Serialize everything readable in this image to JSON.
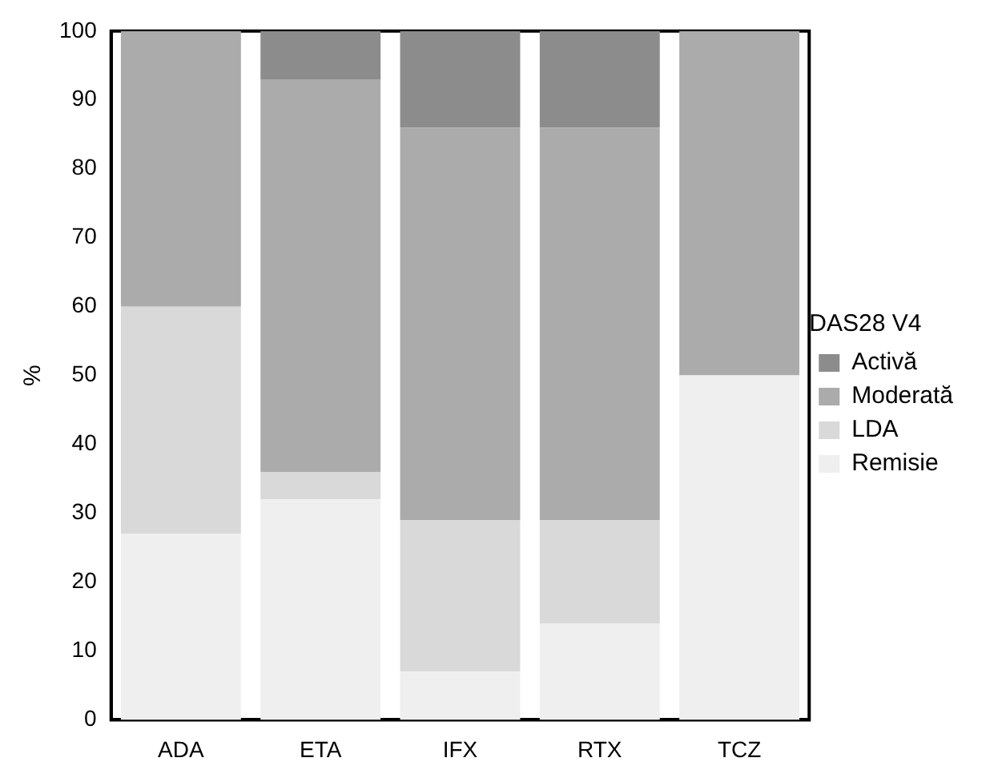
{
  "chart_data": {
    "type": "bar",
    "stacked": true,
    "ylabel": "%",
    "legend_title": "DAS28 V4",
    "legend": "right",
    "grid": false,
    "categories": [
      "ADA",
      "ETA",
      "IFX",
      "RTX",
      "TCZ"
    ],
    "ylim": [
      0,
      100
    ],
    "yticks": [
      0,
      10,
      20,
      30,
      40,
      50,
      60,
      70,
      80,
      90,
      100
    ],
    "series": [
      {
        "name": "Remisie",
        "color": "#efefef",
        "values": [
          27,
          32,
          7,
          14,
          50
        ]
      },
      {
        "name": "LDA",
        "color": "#d9d9d9",
        "values": [
          33,
          4,
          22,
          15,
          0
        ]
      },
      {
        "name": "Moderată",
        "color": "#ababab",
        "values": [
          40,
          57,
          57,
          57,
          50
        ]
      },
      {
        "name": "Activă",
        "color": "#8c8c8c",
        "values": [
          0,
          7,
          14,
          14,
          0
        ]
      }
    ]
  }
}
